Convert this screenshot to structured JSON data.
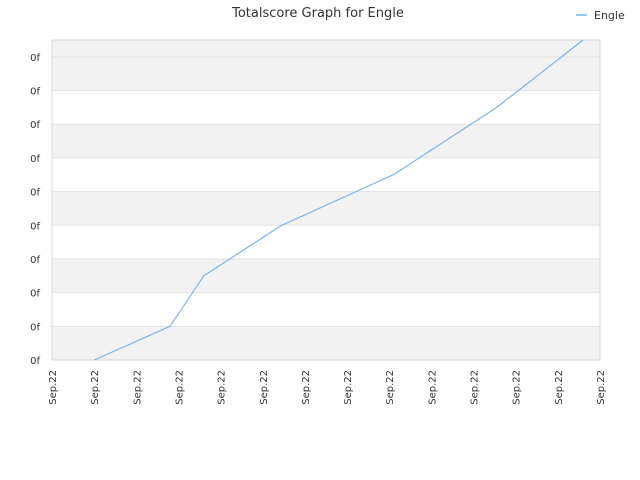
{
  "chart_data": {
    "type": "line",
    "title": "Totalscore Graph for Engle",
    "xlabel": "",
    "ylabel": "",
    "x_tick_labels": [
      "Sep.22",
      "Sep.22",
      "Sep.22",
      "Sep.22",
      "Sep.22",
      "Sep.22",
      "Sep.22",
      "Sep.22",
      "Sep.22",
      "Sep.22",
      "Sep.22",
      "Sep.22",
      "Sep.22",
      "Sep.22"
    ],
    "y_tick_labels": [
      "0f",
      "0f",
      "0f",
      "0f",
      "0f",
      "0f",
      "0f",
      "0f",
      "0f",
      "0f"
    ],
    "xlim": [
      0,
      13
    ],
    "ylim": [
      0,
      9.5
    ],
    "grid": true,
    "legend_position": "top-right",
    "series": [
      {
        "name": "Engle",
        "color": "#7cb5ec",
        "x": [
          1,
          2.8,
          3.6,
          5.45,
          8.1,
          10.55,
          12.6
        ],
        "y": [
          0,
          1,
          2.5,
          4,
          5.5,
          7.5,
          9.5
        ]
      }
    ],
    "band_colors": [
      "#f2f2f2",
      "#ffffff"
    ]
  }
}
